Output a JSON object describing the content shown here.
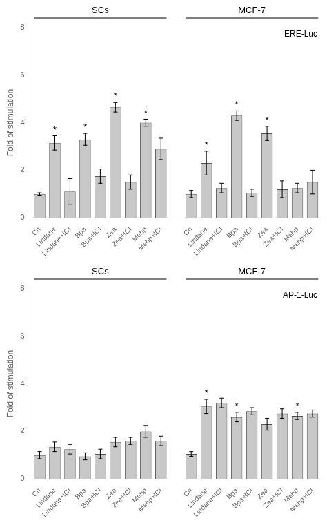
{
  "chart_data": [
    {
      "type": "bar",
      "annotation": "ERE-Luc",
      "ylabel": "Fold of stimulation",
      "ylim": [
        0,
        8
      ],
      "yticks": [
        0,
        2,
        4,
        6,
        8
      ],
      "grid": false,
      "color": "#c8c8c8",
      "groups": [
        {
          "name": "SCs",
          "categories": [
            "Cn",
            "Lindane",
            "Lindane+ICI",
            "Bpa",
            "Bpa+ICI",
            "Zea",
            "Zea+ICI",
            "Mehp",
            "Mehp+ICI"
          ],
          "values": [
            1.0,
            3.15,
            1.1,
            3.3,
            1.75,
            4.65,
            1.5,
            4.0,
            2.9
          ],
          "errors": [
            0.05,
            0.3,
            0.55,
            0.25,
            0.3,
            0.2,
            0.3,
            0.15,
            0.45
          ],
          "annotations": [
            null,
            "*",
            null,
            "*",
            null,
            "*",
            null,
            "*",
            null
          ]
        },
        {
          "name": "MCF-7",
          "categories": [
            "Cn",
            "Lindane",
            "Lindane+ICI",
            "Bpa",
            "Bpa+ICI",
            "Zea",
            "Zea+ICI",
            "Mehp",
            "Mehp+ICI"
          ],
          "values": [
            1.0,
            2.3,
            1.25,
            4.3,
            1.05,
            3.55,
            1.2,
            1.25,
            1.5
          ],
          "errors": [
            0.15,
            0.5,
            0.2,
            0.2,
            0.15,
            0.3,
            0.35,
            0.2,
            0.5
          ],
          "annotations": [
            null,
            "*",
            null,
            "*",
            null,
            "*",
            null,
            null,
            null
          ]
        }
      ]
    },
    {
      "type": "bar",
      "annotation": "AP-1-Luc",
      "ylabel": "Fold of stimulation",
      "ylim": [
        0,
        8
      ],
      "yticks": [
        0,
        2,
        4,
        6,
        8
      ],
      "grid": false,
      "color": "#c8c8c8",
      "groups": [
        {
          "name": "SCs",
          "categories": [
            "Cn",
            "Lindane",
            "Lindane+ICI",
            "Bpa",
            "Bpa+ICI",
            "Zea",
            "Zea+ICI",
            "Mehp",
            "Mehp+ICI"
          ],
          "values": [
            1.0,
            1.35,
            1.25,
            0.95,
            1.05,
            1.55,
            1.6,
            2.0,
            1.6
          ],
          "errors": [
            0.15,
            0.2,
            0.2,
            0.15,
            0.2,
            0.2,
            0.15,
            0.25,
            0.2
          ],
          "annotations": [
            null,
            null,
            null,
            null,
            null,
            null,
            null,
            null,
            null
          ]
        },
        {
          "name": "MCF-7",
          "categories": [
            "Cn",
            "Lindane",
            "Lindane+ICI",
            "Bpa",
            "Bpa+ICI",
            "Zea",
            "Zea+ICI",
            "Mehp",
            "Mehp+ICI"
          ],
          "values": [
            1.05,
            3.05,
            3.2,
            2.6,
            2.85,
            2.3,
            2.75,
            2.65,
            2.75
          ],
          "errors": [
            0.1,
            0.3,
            0.2,
            0.2,
            0.15,
            0.25,
            0.2,
            0.15,
            0.15
          ],
          "annotations": [
            null,
            "*",
            null,
            "*",
            null,
            null,
            null,
            "*",
            null
          ]
        }
      ]
    }
  ]
}
